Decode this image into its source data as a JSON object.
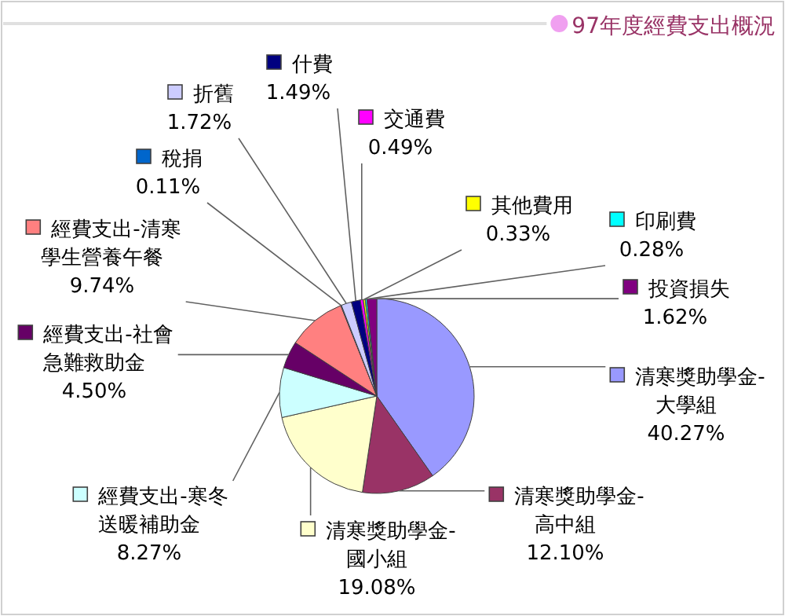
{
  "chart_data": {
    "type": "pie",
    "title": "97年度經費支出概況",
    "categories": [
      "清寒獎助學金-大學組",
      "清寒獎助學金-高中組",
      "清寒獎助學金-國小組",
      "經費支出-寒冬送暖補助金",
      "經費支出-社會急難救助金",
      "經費支出-清寒學生營養午餐",
      "稅捐",
      "折舊",
      "什費",
      "交通費",
      "其他費用",
      "印刷費",
      "投資損失"
    ],
    "values": [
      40.27,
      12.1,
      19.08,
      8.27,
      4.5,
      9.74,
      0.11,
      1.72,
      1.49,
      0.49,
      0.33,
      0.28,
      1.62
    ],
    "value_labels": [
      "40.27%",
      "12.10%",
      "19.08%",
      "8.27%",
      "4.50%",
      "9.74%",
      "0.11%",
      "1.72%",
      "1.49%",
      "0.49%",
      "0.33%",
      "0.28%",
      "1.62%"
    ],
    "legend": "top right",
    "colors": [
      "#9999ff",
      "#993366",
      "#ffffcc",
      "#ccffff",
      "#660066",
      "#ff8080",
      "#0066cc",
      "#ccccff",
      "#000080",
      "#ff00ff",
      "#ffff00",
      "#00ffff",
      "#800080"
    ]
  }
}
